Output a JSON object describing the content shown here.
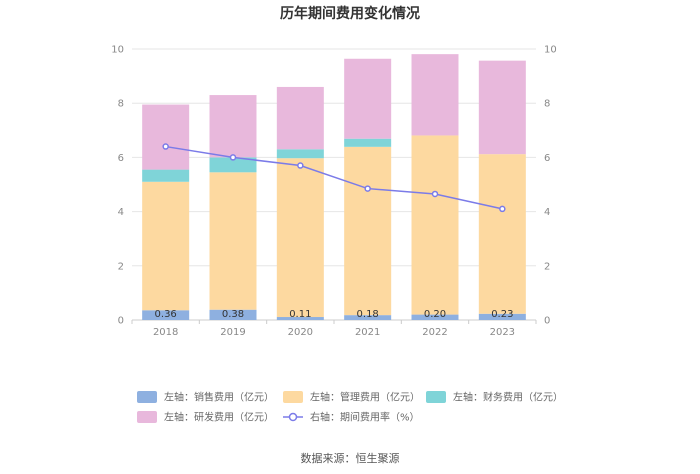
{
  "chart_data": {
    "type": "bar",
    "stacked": true,
    "title": "历年期间费用变化情况",
    "categories": [
      "2018",
      "2019",
      "2020",
      "2021",
      "2022",
      "2023"
    ],
    "y_left": {
      "min": 0,
      "max": 10,
      "ticks": [
        "0",
        "2",
        "4",
        "6",
        "8",
        "10"
      ]
    },
    "y_right": {
      "min": 0,
      "max": 10,
      "ticks": [
        "0",
        "2",
        "4",
        "6",
        "8",
        "10"
      ]
    },
    "series": [
      {
        "key": "sales",
        "name": "左轴：销售费用（亿元）",
        "color": "#8eb0e0",
        "values": [
          0.36,
          0.38,
          0.11,
          0.18,
          0.2,
          0.23
        ],
        "labels": [
          "0.36",
          "0.38",
          "0.11",
          "0.18",
          "0.20",
          "0.23"
        ]
      },
      {
        "key": "admin",
        "name": "左轴：管理费用（亿元）",
        "color": "#fdd9a0",
        "values": [
          4.74,
          5.07,
          5.86,
          6.21,
          6.61,
          5.89
        ]
      },
      {
        "key": "finance",
        "name": "左轴：财务费用（亿元）",
        "color": "#7fd4d8",
        "values": [
          0.45,
          0.55,
          0.33,
          0.3,
          0.0,
          0.0
        ]
      },
      {
        "key": "rd",
        "name": "左轴：研发费用（亿元）",
        "color": "#e8b8dc",
        "values": [
          2.4,
          2.3,
          2.3,
          2.95,
          3.0,
          3.45
        ]
      },
      {
        "key": "rate",
        "name": "右轴：期间费用率（%）",
        "color": "#7b7be8",
        "type": "line",
        "axis": "right",
        "values": [
          6.4,
          6.0,
          5.7,
          4.85,
          4.65,
          4.1
        ]
      }
    ]
  },
  "footer": {
    "source": "数据来源：恒生聚源"
  }
}
